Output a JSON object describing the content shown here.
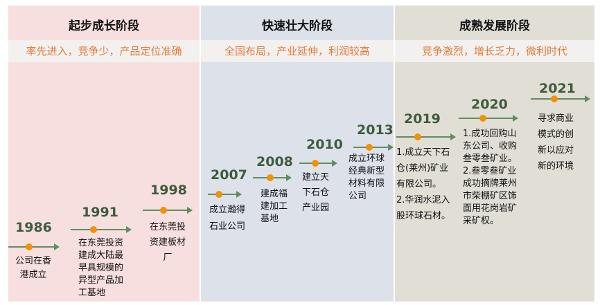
{
  "stages": [
    {
      "title": "起步成长阶段",
      "subtitle": "率先进入，竞争少，产品定位准确",
      "color": "#f6dfde"
    },
    {
      "title": "快速壮大阶段",
      "subtitle": "全国布局，产业延伸，利润较高",
      "color": "#dde1ea"
    },
    {
      "title": "成熟发展阶段",
      "subtitle": "竞争激烈，增长乏力，微利时代",
      "color": "#e1ded6"
    }
  ],
  "colors": {
    "year": "#3e5b3c",
    "arrow": "#5f8d5e",
    "dot": "#f39200",
    "subtitle": "#e07b39"
  },
  "events": [
    {
      "year": "1986",
      "lines": [
        "公司在香",
        "港成立"
      ]
    },
    {
      "year": "1991",
      "lines": [
        "在东莞投资",
        "建成大陆最",
        "早具规模的",
        "异型产品加",
        "工基地"
      ]
    },
    {
      "year": "1998",
      "lines": [
        "在东莞投",
        "资建板材",
        "厂"
      ]
    },
    {
      "year": "2007",
      "lines": [
        "成立瀚得",
        "石业公司"
      ]
    },
    {
      "year": "2008",
      "lines": [
        "建成福",
        "建加工",
        "基地"
      ]
    },
    {
      "year": "2010",
      "lines": [
        "建立天",
        "下石仓",
        "产业园"
      ]
    },
    {
      "year": "2013",
      "lines": [
        "成立环球",
        "经典新型",
        "材料有限",
        "公司"
      ]
    },
    {
      "year": "2019",
      "lines": [
        "1.成立天下石",
        "仓(莱州)矿业",
        "有限公司。",
        "2.华润水泥入",
        "股环球石材。"
      ]
    },
    {
      "year": "2020",
      "lines": [
        "1.成功回购山",
        "东公司、收购",
        "叁零叁矿业。",
        "2.叁零叁矿业",
        "成功摘牌莱州",
        "市柴棚矿区饰",
        "面用花岗岩矿",
        "采矿权。"
      ]
    },
    {
      "year": "2021",
      "lines": [
        "寻求商业",
        "模式的创",
        "新以应对",
        "新的环境"
      ]
    }
  ]
}
